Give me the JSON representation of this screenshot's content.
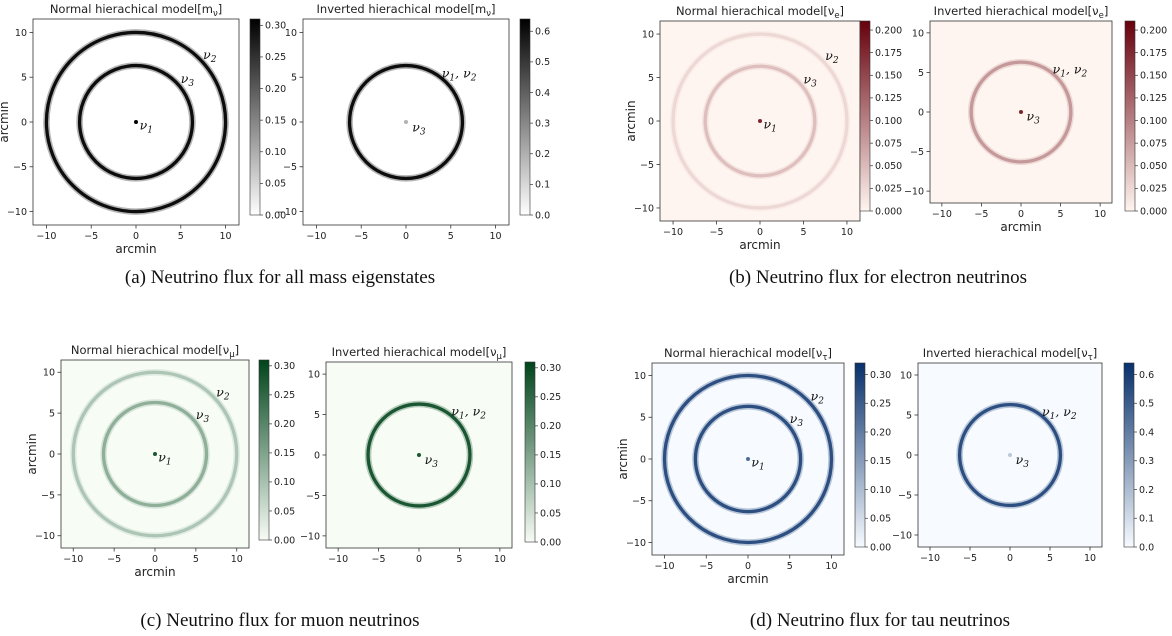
{
  "captions": [
    "(a) Neutrino flux for all mass eigenstates",
    "(b) Neutrino flux for electron neutrinos",
    "(c) Neutrino flux for muon neutrinos",
    "(d) Neutrino flux for tau neutrinos"
  ],
  "chart_data": [
    {
      "type": "heatmap",
      "title": "Normal hierachical model[m_ν]",
      "xlabel": "arcmin",
      "ylabel": "arcmin",
      "xlim": [
        -11.5,
        11.5
      ],
      "ylim": [
        -11.5,
        11.5
      ],
      "xticks": [
        -10,
        -5,
        0,
        5,
        10
      ],
      "yticks": [
        -10,
        -5,
        0,
        5,
        10
      ],
      "colormap": "Greys",
      "colors": [
        "#ffffff",
        "#000000"
      ],
      "colorbar": {
        "range": [
          0,
          0.31
        ],
        "ticks": [
          "0.00",
          "0.05",
          "0.10",
          "0.15",
          "0.20",
          "0.25",
          "0.30"
        ]
      },
      "rings": [
        {
          "radius": 10,
          "intensity": 0.95
        },
        {
          "radius": 6.3,
          "intensity": 0.95
        }
      ],
      "center_dot": {
        "intensity": 1.0
      },
      "annotations": [
        {
          "text": "ν",
          "sub": "2",
          "x": 7.5,
          "y": 7.5
        },
        {
          "text": "ν",
          "sub": "3",
          "x": 5,
          "y": 4.8
        },
        {
          "text": "ν",
          "sub": "1",
          "x": 0.4,
          "y": -0.4
        }
      ]
    },
    {
      "type": "heatmap",
      "title": "Inverted hierachical model[m_ν]",
      "xlabel": "",
      "ylabel": "",
      "xlim": [
        -11.5,
        11.5
      ],
      "ylim": [
        -11.5,
        11.5
      ],
      "xticks": [
        -10,
        -5,
        0,
        5,
        10
      ],
      "yticks": [
        -10,
        -5,
        0,
        5,
        10
      ],
      "colormap": "Greys",
      "colors": [
        "#ffffff",
        "#000000"
      ],
      "colorbar": {
        "range": [
          0,
          0.64
        ],
        "ticks": [
          "0.0",
          "0.1",
          "0.2",
          "0.3",
          "0.4",
          "0.5",
          "0.6"
        ]
      },
      "rings": [
        {
          "radius": 6.3,
          "intensity": 0.95
        }
      ],
      "center_dot": {
        "intensity": 0.3
      },
      "annotations": [
        {
          "text": "ν",
          "sub": "1",
          "text2": ", ν",
          "sub2": "2",
          "x": 4,
          "y": 5.4
        },
        {
          "text": "ν",
          "sub": "3",
          "x": 0.7,
          "y": -0.6
        }
      ]
    },
    {
      "type": "heatmap",
      "title": "Normal hierachical model[ν_e]",
      "xlabel": "arcmin",
      "ylabel": "arcmin",
      "xlim": [
        -11.5,
        11.5
      ],
      "ylim": [
        -11.5,
        11.5
      ],
      "xticks": [
        -10,
        -5,
        0,
        5,
        10
      ],
      "yticks": [
        -10,
        -5,
        0,
        5,
        10
      ],
      "colormap": "Reds",
      "colors": [
        "#fff5f0",
        "#67000d"
      ],
      "colorbar": {
        "range": [
          0,
          0.21
        ],
        "ticks": [
          "0.000",
          "0.025",
          "0.050",
          "0.075",
          "0.100",
          "0.125",
          "0.150",
          "0.175",
          "0.200"
        ]
      },
      "rings": [
        {
          "radius": 10,
          "intensity": 0.12
        },
        {
          "radius": 6.3,
          "intensity": 0.22
        }
      ],
      "center_dot": {
        "intensity": 0.85
      },
      "annotations": [
        {
          "text": "ν",
          "sub": "2",
          "x": 7.5,
          "y": 7.5
        },
        {
          "text": "ν",
          "sub": "3",
          "x": 5,
          "y": 4.8
        },
        {
          "text": "ν",
          "sub": "1",
          "x": 0.4,
          "y": -0.4
        }
      ]
    },
    {
      "type": "heatmap",
      "title": "Inverted hierachical model[ν_e]",
      "xlabel": "arcmin",
      "ylabel": "",
      "xlim": [
        -11.5,
        11.5
      ],
      "ylim": [
        -11.5,
        11.5
      ],
      "xticks": [
        -10,
        -5,
        0,
        5,
        10
      ],
      "yticks": [
        -10,
        -5,
        0,
        5,
        10
      ],
      "colormap": "Reds",
      "colors": [
        "#fff5f0",
        "#67000d"
      ],
      "colorbar": {
        "range": [
          0,
          0.21
        ],
        "ticks": [
          "0.000",
          "0.025",
          "0.050",
          "0.075",
          "0.100",
          "0.125",
          "0.150",
          "0.175",
          "0.200"
        ]
      },
      "rings": [
        {
          "radius": 6.3,
          "intensity": 0.38
        }
      ],
      "center_dot": {
        "intensity": 0.85
      },
      "annotations": [
        {
          "text": "ν",
          "sub": "1",
          "text2": ", ν",
          "sub2": "2",
          "x": 4,
          "y": 5.4
        },
        {
          "text": "ν",
          "sub": "3",
          "x": 0.7,
          "y": -0.6
        }
      ]
    },
    {
      "type": "heatmap",
      "title": "Normal hierachical model[ν_μ]",
      "xlabel": "arcmin",
      "ylabel": "arcmin",
      "xlim": [
        -11.5,
        11.5
      ],
      "ylim": [
        -11.5,
        11.5
      ],
      "xticks": [
        -10,
        -5,
        0,
        5,
        10
      ],
      "yticks": [
        -10,
        -5,
        0,
        5,
        10
      ],
      "colormap": "Greens",
      "colors": [
        "#f7fcf5",
        "#00441b"
      ],
      "colorbar": {
        "range": [
          0,
          0.31
        ],
        "ticks": [
          "0.00",
          "0.05",
          "0.10",
          "0.15",
          "0.20",
          "0.25",
          "0.30"
        ]
      },
      "rings": [
        {
          "radius": 10,
          "intensity": 0.3
        },
        {
          "radius": 6.3,
          "intensity": 0.42
        }
      ],
      "center_dot": {
        "intensity": 0.9
      },
      "annotations": [
        {
          "text": "ν",
          "sub": "2",
          "x": 7.5,
          "y": 7.5
        },
        {
          "text": "ν",
          "sub": "3",
          "x": 5,
          "y": 4.8
        },
        {
          "text": "ν",
          "sub": "1",
          "x": 0.4,
          "y": -0.4
        }
      ]
    },
    {
      "type": "heatmap",
      "title": "Inverted hierachical model[ν_μ]",
      "xlabel": "",
      "ylabel": "",
      "xlim": [
        -11.5,
        11.5
      ],
      "ylim": [
        -11.5,
        11.5
      ],
      "xticks": [
        -10,
        -5,
        0,
        5,
        10
      ],
      "yticks": [
        -10,
        -5,
        0,
        5,
        10
      ],
      "colormap": "Greens",
      "colors": [
        "#f7fcf5",
        "#00441b"
      ],
      "colorbar": {
        "range": [
          0,
          0.31
        ],
        "ticks": [
          "0.00",
          "0.05",
          "0.10",
          "0.15",
          "0.20",
          "0.25",
          "0.30"
        ]
      },
      "rings": [
        {
          "radius": 6.3,
          "intensity": 0.9
        }
      ],
      "center_dot": {
        "intensity": 0.9
      },
      "annotations": [
        {
          "text": "ν",
          "sub": "1",
          "text2": ", ν",
          "sub2": "2",
          "x": 4,
          "y": 5.4
        },
        {
          "text": "ν",
          "sub": "3",
          "x": 0.7,
          "y": -0.6
        }
      ]
    },
    {
      "type": "heatmap",
      "title": "Normal hierachical model[ν_τ]",
      "xlabel": "arcmin",
      "ylabel": "arcmin",
      "xlim": [
        -11.5,
        11.5
      ],
      "ylim": [
        -11.5,
        11.5
      ],
      "xticks": [
        -10,
        -5,
        0,
        5,
        10
      ],
      "yticks": [
        -10,
        -5,
        0,
        5,
        10
      ],
      "colormap": "Blues",
      "colors": [
        "#f7fbff",
        "#08306b"
      ],
      "colorbar": {
        "range": [
          0,
          0.32
        ],
        "ticks": [
          "0.00",
          "0.05",
          "0.10",
          "0.15",
          "0.20",
          "0.25",
          "0.30"
        ]
      },
      "rings": [
        {
          "radius": 10,
          "intensity": 0.85
        },
        {
          "radius": 6.3,
          "intensity": 0.85
        }
      ],
      "center_dot": {
        "intensity": 0.7
      },
      "annotations": [
        {
          "text": "ν",
          "sub": "2",
          "x": 7.5,
          "y": 7.5
        },
        {
          "text": "ν",
          "sub": "3",
          "x": 5,
          "y": 4.8
        },
        {
          "text": "ν",
          "sub": "1",
          "x": 0.4,
          "y": -0.4
        }
      ]
    },
    {
      "type": "heatmap",
      "title": "Inverted hierachical model[ν_τ]",
      "xlabel": "",
      "ylabel": "",
      "xlim": [
        -11.5,
        11.5
      ],
      "ylim": [
        -11.5,
        11.5
      ],
      "xticks": [
        -10,
        -5,
        0,
        5,
        10
      ],
      "yticks": [
        -10,
        -5,
        0,
        5,
        10
      ],
      "colormap": "Blues",
      "colors": [
        "#f7fbff",
        "#08306b"
      ],
      "colorbar": {
        "range": [
          0,
          0.64
        ],
        "ticks": [
          "0.0",
          "0.1",
          "0.2",
          "0.3",
          "0.4",
          "0.5",
          "0.6"
        ]
      },
      "rings": [
        {
          "radius": 6.3,
          "intensity": 0.85
        }
      ],
      "center_dot": {
        "intensity": 0.25
      },
      "annotations": [
        {
          "text": "ν",
          "sub": "1",
          "text2": ", ν",
          "sub2": "2",
          "x": 4,
          "y": 5.4
        },
        {
          "text": "ν",
          "sub": "3",
          "x": 0.7,
          "y": -0.6
        }
      ]
    }
  ]
}
